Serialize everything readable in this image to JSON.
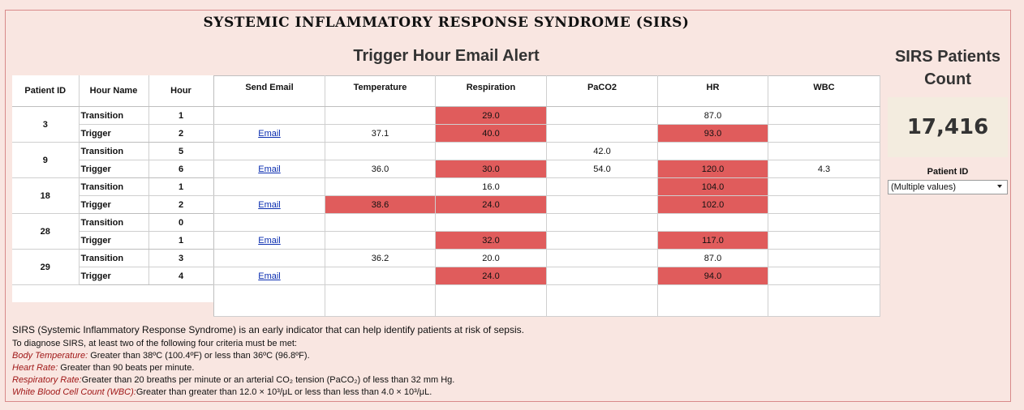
{
  "title": "SYSTEMIC INFLAMMATORY RESPONSE SYNDROME (SIRS)",
  "subtitle": "Trigger Hour Email Alert",
  "count_panel": {
    "title_line1": "SIRS Patients",
    "title_line2": "Count",
    "value": "17,416"
  },
  "filter": {
    "label": "Patient ID",
    "selected": "(Multiple values)"
  },
  "left_headers": [
    "Patient ID",
    "Hour  Name",
    "Hour"
  ],
  "right_headers": [
    "Send Email",
    "Temperature",
    "Respiration",
    "PaCO2",
    "HR",
    "WBC"
  ],
  "colors": {
    "highlight": "#e05c5c",
    "background": "#f9e6e1",
    "label_red": "#a01818"
  },
  "rows": [
    {
      "patient_id": "3",
      "hour_name": "Transition",
      "hour": "1",
      "email": "",
      "temperature": "",
      "respiration": "29.0",
      "paco2": "",
      "hr": "87.0",
      "wbc": ""
    },
    {
      "patient_id": "",
      "hour_name": "Trigger",
      "hour": "2",
      "email": "Email",
      "temperature": "37.1",
      "respiration": "40.0",
      "paco2": "",
      "hr": "93.0",
      "wbc": ""
    },
    {
      "patient_id": "9",
      "hour_name": "Transition",
      "hour": "5",
      "email": "",
      "temperature": "",
      "respiration": "",
      "paco2": "42.0",
      "hr": "",
      "wbc": ""
    },
    {
      "patient_id": "",
      "hour_name": "Trigger",
      "hour": "6",
      "email": "Email",
      "temperature": "36.0",
      "respiration": "30.0",
      "paco2": "54.0",
      "hr": "120.0",
      "wbc": "4.3"
    },
    {
      "patient_id": "18",
      "hour_name": "Transition",
      "hour": "1",
      "email": "",
      "temperature": "",
      "respiration": "16.0",
      "paco2": "",
      "hr": "104.0",
      "wbc": ""
    },
    {
      "patient_id": "",
      "hour_name": "Trigger",
      "hour": "2",
      "email": "Email",
      "temperature": "38.6",
      "respiration": "24.0",
      "paco2": "",
      "hr": "102.0",
      "wbc": ""
    },
    {
      "patient_id": "28",
      "hour_name": "Transition",
      "hour": "0",
      "email": "",
      "temperature": "",
      "respiration": "",
      "paco2": "",
      "hr": "",
      "wbc": ""
    },
    {
      "patient_id": "",
      "hour_name": "Trigger",
      "hour": "1",
      "email": "Email",
      "temperature": "",
      "respiration": "32.0",
      "paco2": "",
      "hr": "117.0",
      "wbc": ""
    },
    {
      "patient_id": "29",
      "hour_name": "Transition",
      "hour": "3",
      "email": "",
      "temperature": "36.2",
      "respiration": "20.0",
      "paco2": "",
      "hr": "87.0",
      "wbc": ""
    },
    {
      "patient_id": "",
      "hour_name": "Trigger",
      "hour": "4",
      "email": "Email",
      "temperature": "",
      "respiration": "24.0",
      "paco2": "",
      "hr": "94.0",
      "wbc": ""
    }
  ],
  "highlights": {
    "r0": [
      "respiration"
    ],
    "r1": [
      "respiration",
      "hr"
    ],
    "r2": [],
    "r3": [
      "respiration",
      "hr"
    ],
    "r4": [
      "hr"
    ],
    "r5": [
      "temperature",
      "respiration",
      "hr"
    ],
    "r6": [],
    "r7": [
      "respiration",
      "hr"
    ],
    "r8": [],
    "r9": [
      "respiration",
      "hr"
    ]
  },
  "notes": {
    "intro": "SIRS (Systemic Inflammatory Response Syndrome)   is an early indicator that can help identify patients at risk of sepsis.",
    "criteria_intro": "To diagnose SIRS, at least two of the following four criteria must be met:",
    "items": [
      {
        "label": "Body Temperature:",
        "text": "    Greater than 38ºC (100.4ºF) or less than 36ºC (96.8ºF)."
      },
      {
        "label": "Heart Rate:",
        "text": "  Greater than 90 beats per minute."
      },
      {
        "label": "Respiratory Rate:",
        "text": "Greater than 20 breaths per minute or an arterial CO₂ tension (PaCO₂) of less than 32 mm Hg."
      },
      {
        "label": "White Blood Cell Count (WBC):",
        "text": "Greater than greater than 12.0 × 10³/μL or less than less than 4.0 × 10³/μL."
      }
    ]
  }
}
